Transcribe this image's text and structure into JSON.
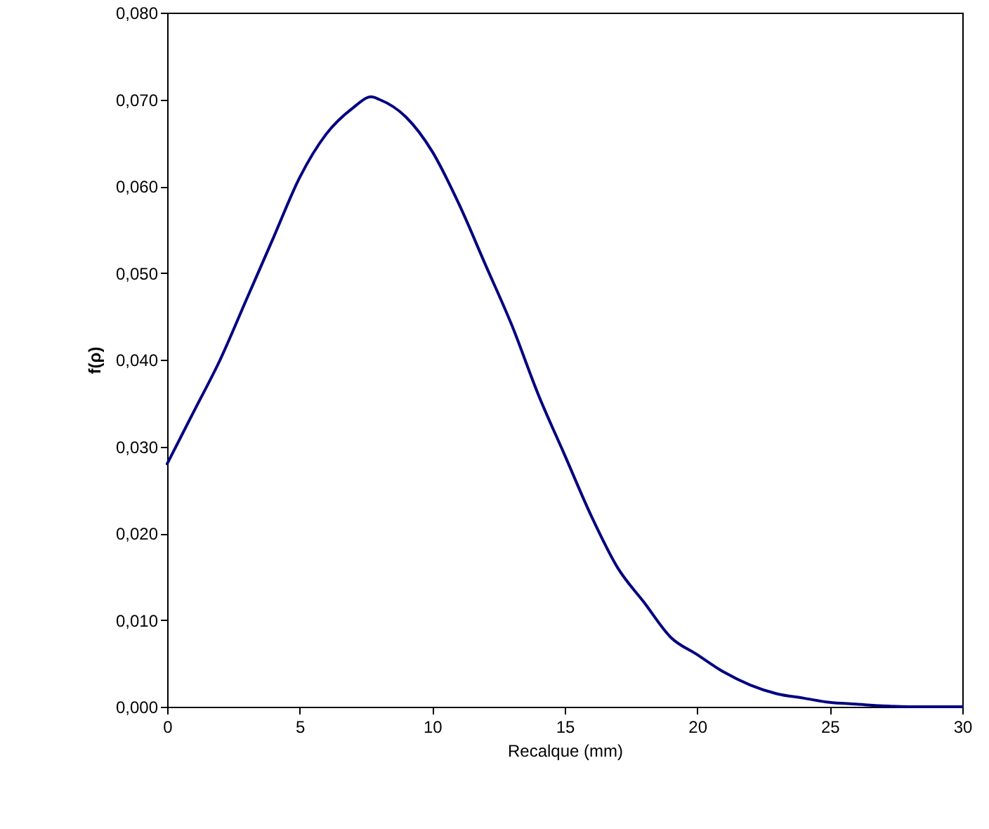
{
  "chart_data": {
    "type": "line",
    "xlabel": "Recalque (mm)",
    "ylabel": "f(ρ)",
    "x": [
      0,
      1,
      2,
      3,
      4,
      5,
      6,
      7,
      7.7,
      8,
      9,
      10,
      11,
      12,
      13,
      14,
      15,
      16,
      17,
      18,
      19,
      20,
      21,
      22,
      23,
      24,
      25,
      26,
      27,
      28,
      29,
      30
    ],
    "series": [
      {
        "color": "#000080",
        "values": [
          0.028,
          0.034,
          0.04,
          0.047,
          0.054,
          0.061,
          0.066,
          0.069,
          0.0703,
          0.07,
          0.068,
          0.064,
          0.058,
          0.051,
          0.044,
          0.036,
          0.029,
          0.022,
          0.016,
          0.012,
          0.008,
          0.006,
          0.004,
          0.0025,
          0.0015,
          0.001,
          0.0005,
          0.0003,
          0.0001,
          0,
          0,
          0
        ]
      }
    ],
    "xlim": [
      0,
      30
    ],
    "xticks": [
      0,
      5,
      10,
      15,
      20,
      25,
      30
    ],
    "ylim": [
      0,
      0.08
    ],
    "yticks": [
      {
        "value": 0,
        "label": "0,000"
      },
      {
        "value": 0.01,
        "label": "0,010"
      },
      {
        "value": 0.02,
        "label": "0,020"
      },
      {
        "value": 0.03,
        "label": "0,030"
      },
      {
        "value": 0.04,
        "label": "0,040"
      },
      {
        "value": 0.05,
        "label": "0,050"
      },
      {
        "value": 0.06,
        "label": "0,060"
      },
      {
        "value": 0.07,
        "label": "0,070"
      },
      {
        "value": 0.08,
        "label": "0,080"
      }
    ],
    "grid": false,
    "marker": "none",
    "line_style": "solid"
  }
}
